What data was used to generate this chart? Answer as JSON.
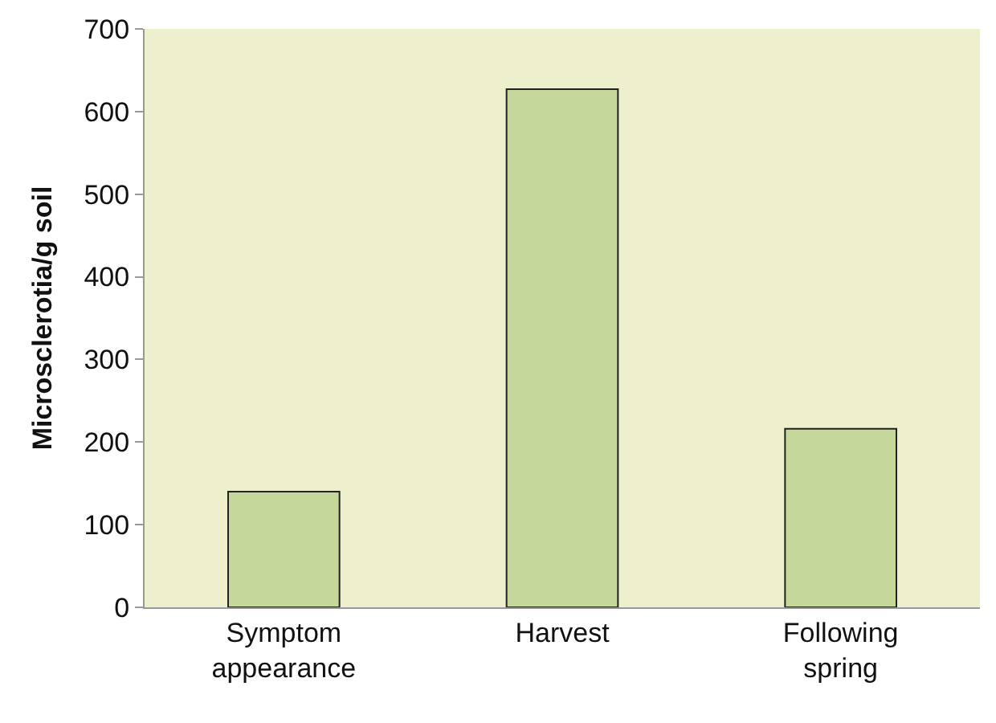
{
  "chart_data": {
    "type": "bar",
    "ylabel": "Microsclerotia/g soil",
    "categories": [
      "Symptom\nappearance",
      "Harvest",
      "Following\nspring"
    ],
    "values": [
      140,
      627,
      216
    ],
    "color": "#c5d79a",
    "ylim": [
      0,
      700
    ],
    "yticks": [
      0,
      100,
      200,
      300,
      400,
      500,
      600,
      700
    ],
    "grid": false
  }
}
